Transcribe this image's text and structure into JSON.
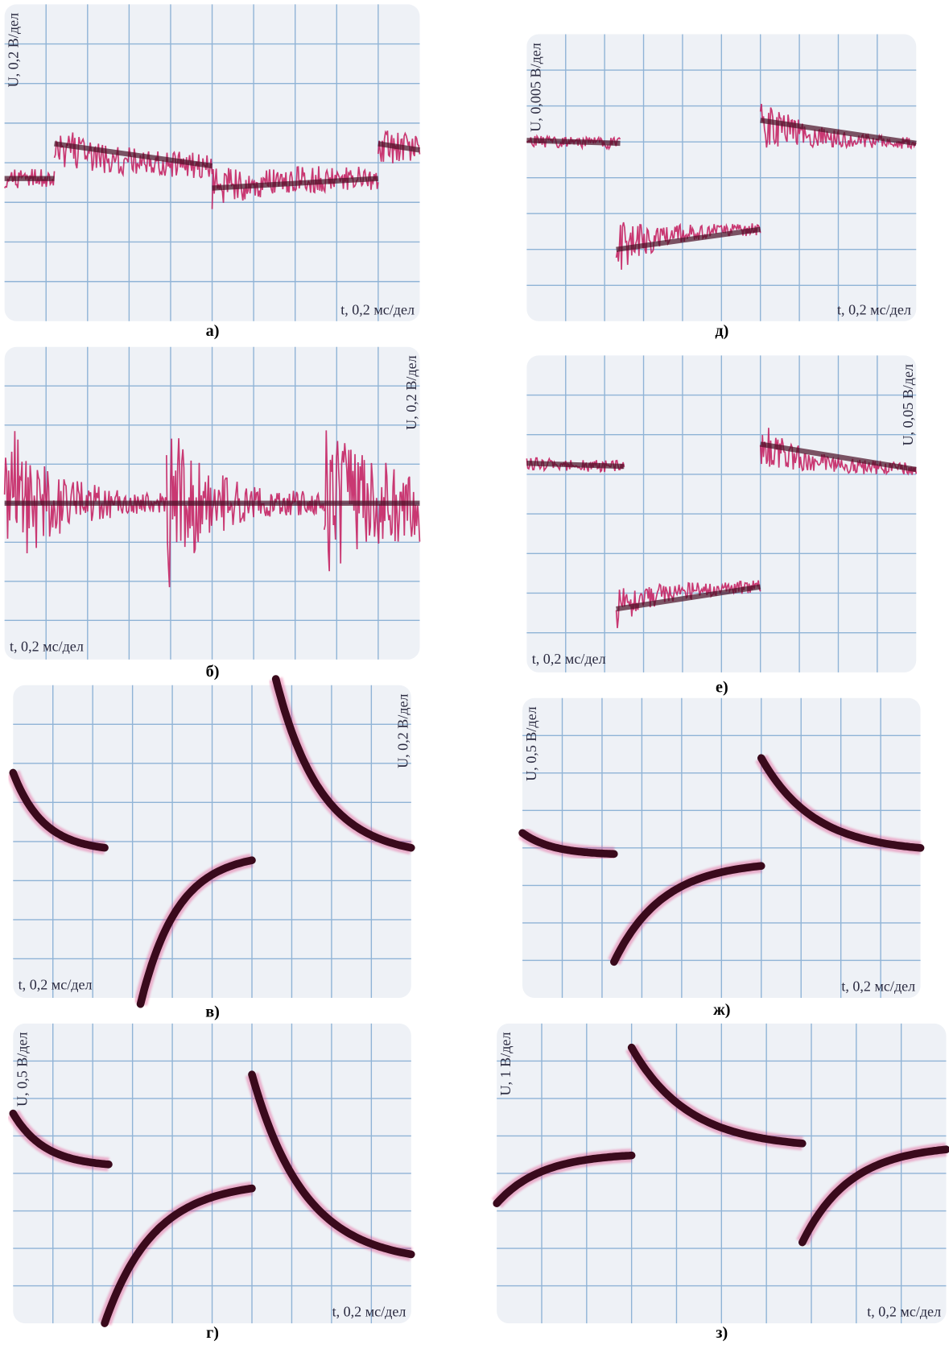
{
  "panels": [
    {
      "caption": "а)",
      "y_label": "U, 0,2 В/дел",
      "x_label": "t, 0,2 мс/дел"
    },
    {
      "caption": "б)",
      "y_label": "U, 0,2 В/дел",
      "x_label": "t, 0,2 мс/дел"
    },
    {
      "caption": "в)",
      "y_label": "U, 0,2 В/дел",
      "x_label": "t, 0,2 мс/дел"
    },
    {
      "caption": "г)",
      "y_label": "U, 0,5 В/дел",
      "x_label": "t, 0,2 мс/дел"
    },
    {
      "caption": "д)",
      "y_label": "U, 0,005 В/дел",
      "x_label": "t, 0,2 мс/дел"
    },
    {
      "caption": "е)",
      "y_label": "U, 0,05 В/дел",
      "x_label": "t, 0,2 мс/дел"
    },
    {
      "caption": "ж)",
      "y_label": "U, 0,5 В/дел",
      "x_label": "t, 0,2 мс/дел"
    },
    {
      "caption": "з)",
      "y_label": "U, 1 В/дел",
      "x_label": "t, 0,2 мс/дел"
    }
  ]
}
